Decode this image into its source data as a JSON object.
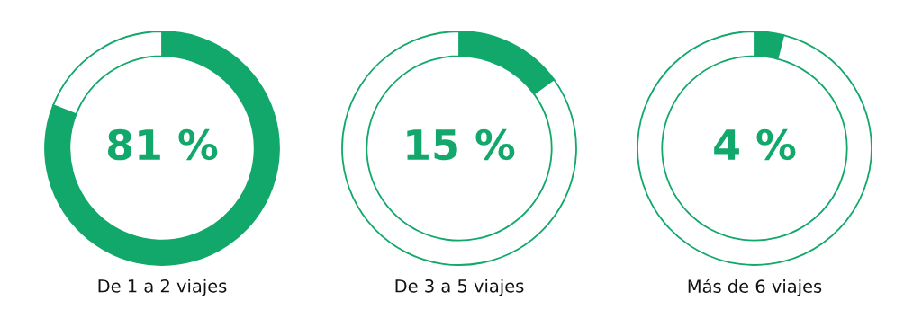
{
  "chart_data": [
    {
      "type": "donut",
      "categories": [
        null,
        null
      ],
      "values": [
        81,
        19
      ],
      "colors": [
        "#12a86b",
        "#ffffff"
      ],
      "value_labels": [
        "81 %",
        null
      ],
      "xlabel": "De 1 a 2 viajes"
    },
    {
      "type": "donut",
      "categories": [
        null,
        null
      ],
      "values": [
        15,
        85
      ],
      "colors": [
        "#12a86b",
        "#ffffff"
      ],
      "value_labels": [
        "15 %",
        null
      ],
      "xlabel": "De 3 a 5 viajes"
    },
    {
      "type": "donut",
      "categories": [
        null,
        null
      ],
      "values": [
        4,
        96
      ],
      "colors": [
        "#12a86b",
        "#ffffff"
      ],
      "value_labels": [
        "4 %",
        null
      ],
      "xlabel": "Más de 6 viajes"
    }
  ]
}
